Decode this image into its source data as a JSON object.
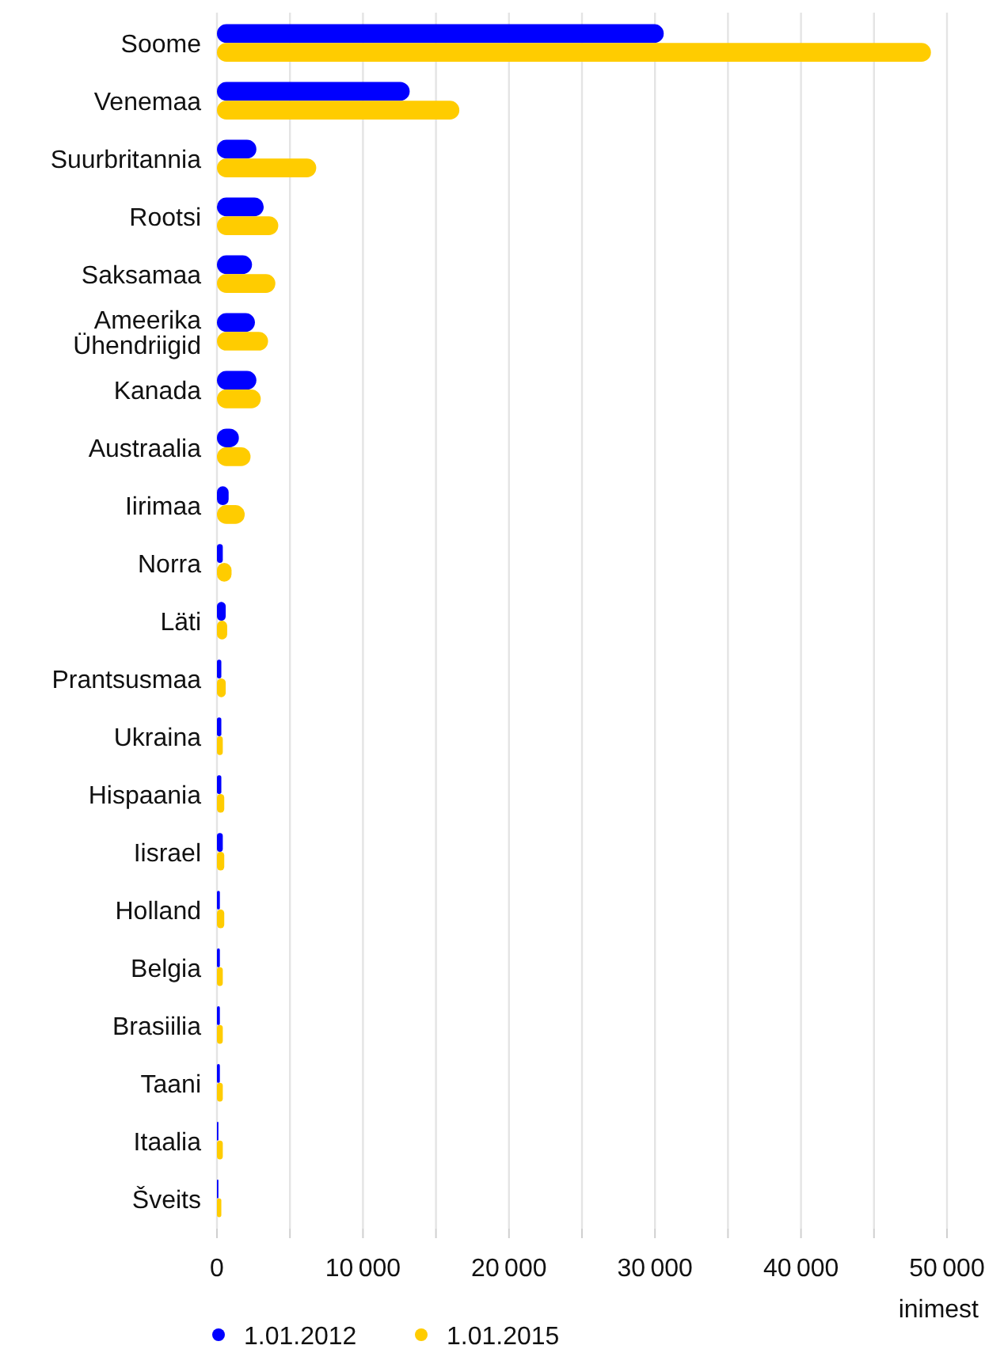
{
  "chart_data": {
    "type": "bar",
    "orientation": "horizontal",
    "categories": [
      "Soome",
      "Venemaa",
      "Suurbritannia",
      "Rootsi",
      "Saksamaa",
      "Ameerika Ühendriigid",
      "Kanada",
      "Austraalia",
      "Iirimaa",
      "Norra",
      "Läti",
      "Prantsusmaa",
      "Ukraina",
      "Hispaania",
      "Iisrael",
      "Holland",
      "Belgia",
      "Brasiilia",
      "Taani",
      "Itaalia",
      "Šveits"
    ],
    "series": [
      {
        "name": "1.01.2012",
        "color": "#0000ff",
        "values": [
          30600,
          13200,
          2700,
          3200,
          2400,
          2600,
          2700,
          1500,
          800,
          400,
          600,
          300,
          300,
          300,
          400,
          200,
          200,
          200,
          200,
          100,
          100
        ]
      },
      {
        "name": "1.01.2015",
        "color": "#ffcc00",
        "values": [
          48900,
          16600,
          6800,
          4200,
          4000,
          3500,
          3000,
          2300,
          1900,
          1000,
          700,
          600,
          400,
          500,
          500,
          500,
          400,
          400,
          400,
          400,
          300
        ]
      }
    ],
    "xlabel": "inimest",
    "xlim": [
      0,
      50000
    ],
    "xticks": [
      0,
      {
        "value": 5000,
        "label": null
      },
      10000,
      {
        "value": 15000,
        "label": null
      },
      20000,
      {
        "value": 25000,
        "label": null
      },
      30000,
      {
        "value": 35000,
        "label": null
      },
      40000,
      {
        "value": 45000,
        "label": null
      },
      50000
    ],
    "grid": "x",
    "legend": "bottom left"
  }
}
